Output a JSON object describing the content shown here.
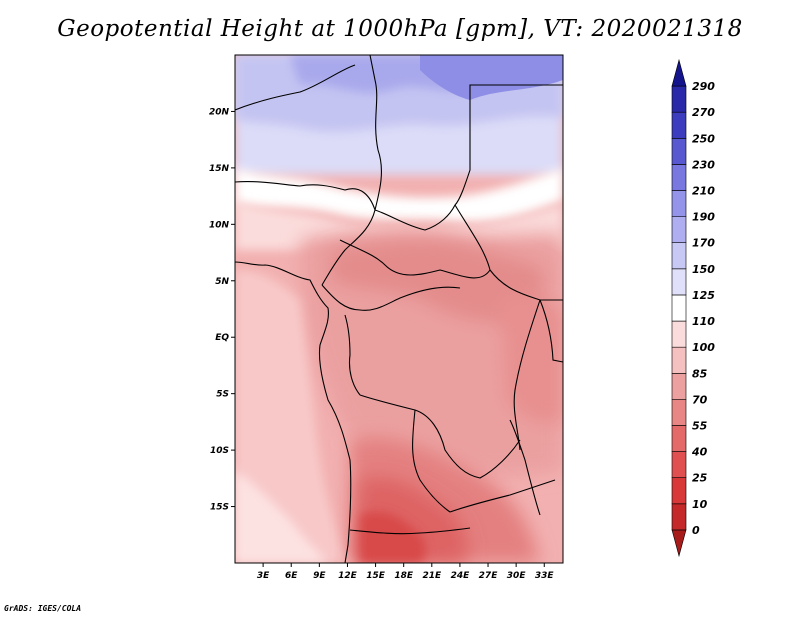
{
  "title": "Geopotential Height at 1000hPa [gpm], VT: 2020021318",
  "credit": "GrADS: IGES/COLA",
  "map": {
    "lon_range": [
      0,
      35
    ],
    "lat_range": [
      -20,
      25
    ],
    "lon_ticks": [
      "3E",
      "6E",
      "9E",
      "12E",
      "15E",
      "18E",
      "21E",
      "24E",
      "27E",
      "30E",
      "33E"
    ],
    "lon_tick_values": [
      3,
      6,
      9,
      12,
      15,
      18,
      21,
      24,
      27,
      30,
      33
    ],
    "lat_ticks": [
      "20N",
      "15N",
      "10N",
      "5N",
      "EQ",
      "5S",
      "10S",
      "15S"
    ],
    "lat_tick_values": [
      20,
      15,
      10,
      5,
      0,
      -5,
      -10,
      -15
    ]
  },
  "colorbar": {
    "labels": [
      "0",
      "10",
      "25",
      "40",
      "55",
      "70",
      "85",
      "100",
      "110",
      "125",
      "150",
      "170",
      "190",
      "210",
      "230",
      "250",
      "270",
      "290"
    ],
    "colors": [
      "#a81b1b",
      "#c42828",
      "#d83838",
      "#e05050",
      "#e46a6a",
      "#e88585",
      "#eda0a0",
      "#f5c0c0",
      "#fbdcdc",
      "#ffffff",
      "#e0e0fa",
      "#c8c8f5",
      "#aeaef0",
      "#9494ea",
      "#7878e0",
      "#5858d0",
      "#3c3cbe",
      "#2828a8",
      "#14148c"
    ]
  }
}
